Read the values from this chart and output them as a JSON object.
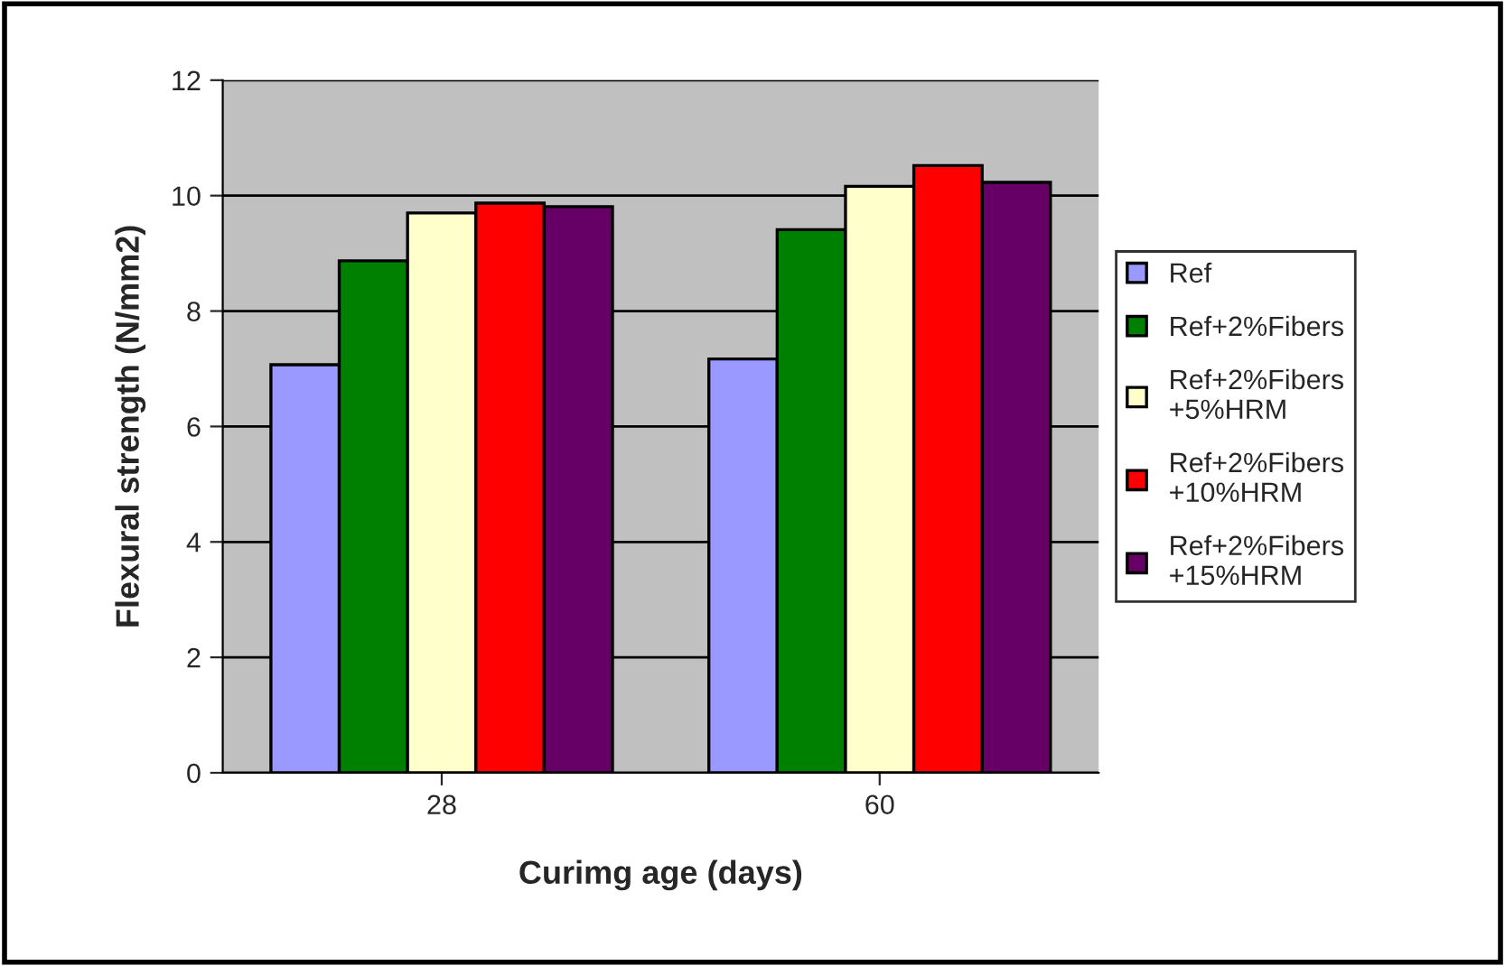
{
  "chart_data": {
    "type": "bar",
    "xlabel": "Curimg age (days)",
    "ylabel": "Flexural strength (N/mm2)",
    "categories": [
      "28",
      "60"
    ],
    "series": [
      {
        "name": "Ref",
        "color": "#9999ff",
        "values": [
          7.07,
          7.17
        ]
      },
      {
        "name": "Ref+2%Fibers",
        "color": "#008000",
        "values": [
          8.87,
          9.41
        ]
      },
      {
        "name": "Ref+2%Fibers\n+5%HRM",
        "color": "#ffffcc",
        "values": [
          9.7,
          10.16
        ]
      },
      {
        "name": "Ref+2%Fibers\n+10%HRM",
        "color": "#ff0000",
        "values": [
          9.87,
          10.52
        ]
      },
      {
        "name": "Ref+2%Fibers\n+15%HRM",
        "color": "#660066",
        "values": [
          9.81,
          10.23
        ]
      }
    ],
    "ylim": [
      0,
      12
    ],
    "yticks": [
      0,
      2,
      4,
      6,
      8,
      10,
      12
    ],
    "grid": "y",
    "legend": "right"
  }
}
